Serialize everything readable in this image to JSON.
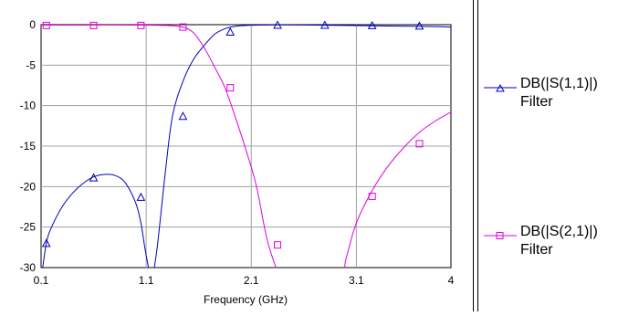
{
  "chart_data": {
    "type": "line",
    "xlabel": "Frequency (GHz)",
    "ylabel": "",
    "xlim": [
      0.1,
      4
    ],
    "ylim": [
      -30,
      0
    ],
    "xticks": [
      0.1,
      1.1,
      2.1,
      3.1,
      4
    ],
    "xtick_labels": [
      "0.1",
      "1.1",
      "2.1",
      "3.1",
      "4"
    ],
    "yticks": [
      0,
      -5,
      -10,
      -15,
      -20,
      -25,
      -30
    ],
    "ytick_labels": [
      "0",
      "-5",
      "-10",
      "-15",
      "-20",
      "-25",
      "-30"
    ],
    "grid": true,
    "legend_position": "right",
    "series": [
      {
        "name": "DB(|S(1,1)|)",
        "name2": "Filter",
        "color": "#0000c0",
        "marker": "triangle",
        "x": [
          0.1,
          0.15,
          0.2,
          0.3,
          0.4,
          0.5,
          0.6,
          0.7,
          0.8,
          0.9,
          1.0,
          1.05,
          1.1,
          1.15,
          1.2,
          1.28,
          1.35,
          1.45,
          1.55,
          1.65,
          1.75,
          1.85,
          1.95,
          2.05,
          2.15,
          2.4,
          2.7,
          3.0,
          3.3,
          3.6,
          3.9,
          4.0
        ],
        "y": [
          -31.5,
          -27.0,
          -25.0,
          -22.5,
          -20.8,
          -19.6,
          -18.8,
          -18.5,
          -18.6,
          -19.5,
          -22.0,
          -24.5,
          -28.5,
          -31.0,
          -28.0,
          -18.5,
          -11.3,
          -7.0,
          -4.3,
          -2.6,
          -1.2,
          -0.5,
          -0.2,
          -0.1,
          -0.05,
          -0.03,
          -0.05,
          -0.1,
          -0.15,
          -0.2,
          -0.25,
          -0.3
        ],
        "marker_x": [
          0.15,
          0.6,
          1.05,
          1.45,
          1.9,
          2.35,
          2.8,
          3.25,
          3.7
        ],
        "marker_y": [
          -27.0,
          -18.9,
          -21.3,
          -11.3,
          -0.9,
          -0.05,
          -0.05,
          -0.1,
          -0.15
        ]
      },
      {
        "name": "DB(|S(2,1)|)",
        "name2": "Filter",
        "color": "#e000e0",
        "marker": "square",
        "x": [
          0.1,
          0.5,
          1.0,
          1.3,
          1.45,
          1.55,
          1.65,
          1.75,
          1.85,
          1.95,
          2.05,
          2.15,
          2.25,
          2.35,
          2.45,
          2.92,
          3.0,
          3.1,
          3.25,
          3.4,
          3.55,
          3.7,
          3.85,
          4.0
        ],
        "y": [
          -0.05,
          -0.05,
          -0.05,
          -0.1,
          -0.3,
          -1.0,
          -2.8,
          -5.2,
          -7.8,
          -11.5,
          -15.5,
          -20.0,
          -26.5,
          -30.5,
          -33.5,
          -33.0,
          -29.0,
          -24.5,
          -20.5,
          -17.5,
          -15.2,
          -13.3,
          -11.9,
          -10.8
        ],
        "marker_x": [
          0.15,
          0.6,
          1.05,
          1.45,
          1.9,
          2.35,
          2.8,
          3.25,
          3.7
        ],
        "marker_y": [
          -0.1,
          -0.1,
          -0.1,
          -0.3,
          -7.8,
          -27.2,
          -34.0,
          -21.2,
          -14.7
        ]
      }
    ]
  }
}
